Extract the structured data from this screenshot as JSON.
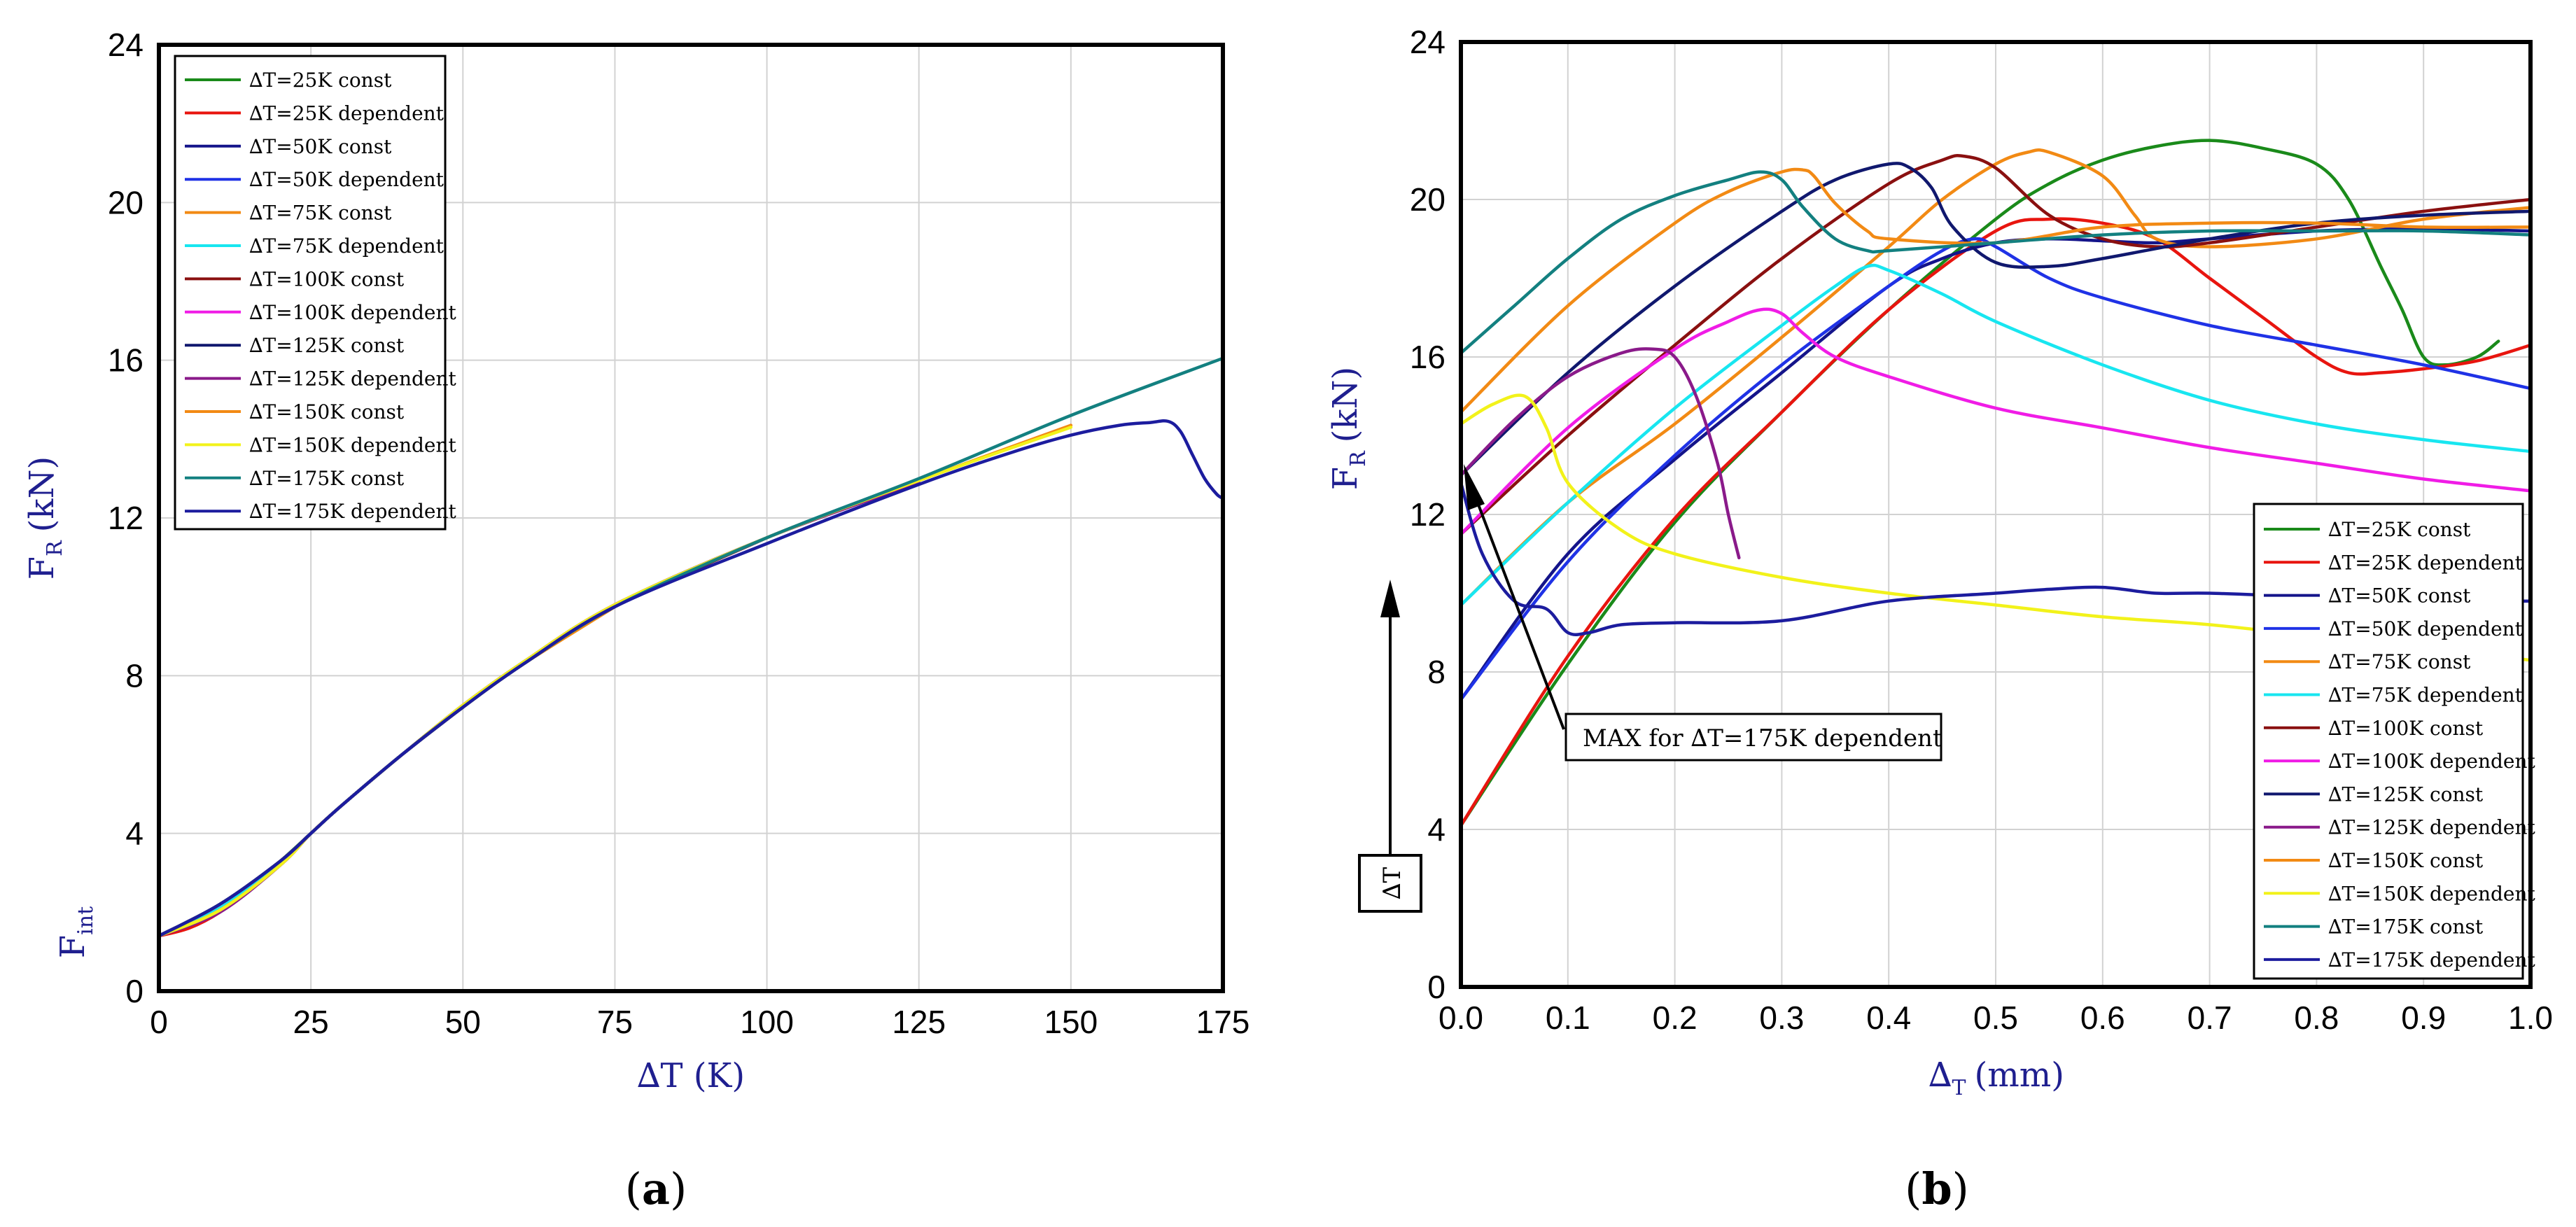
{
  "colors": {
    "axis_label": "#1f1f8f",
    "series": [
      "#1a8a1a",
      "#e8150f",
      "#14148a",
      "#1f32e6",
      "#f28a14",
      "#18e6f0",
      "#8a1010",
      "#f01ce6",
      "#10186e",
      "#8a1a8a",
      "#f28a14",
      "#f2f21a",
      "#138080",
      "#1c1c9e"
    ]
  },
  "legend_labels": [
    "∆T=25K const",
    "∆T=25K dependent",
    "∆T=50K const",
    "∆T=50K dependent",
    "∆T=75K const",
    "∆T=75K dependent",
    "∆T=100K const",
    "∆T=100K dependent",
    "∆T=125K const",
    "∆T=125K dependent",
    "∆T=150K const",
    "∆T=150K dependent",
    "∆T=175K const",
    "∆T=175K dependent"
  ],
  "chart_data": [
    {
      "type": "line",
      "caption": "(a)",
      "caption_letter": "a",
      "xlabel": "∆T (K)",
      "ylabel_main": "F",
      "ylabel_sub": "R",
      "ylabel_unit": "(kN)",
      "fint_main": "F",
      "fint_sub": "int",
      "fint_value": 1.4,
      "xlim": [
        0,
        175
      ],
      "ylim": [
        0,
        24
      ],
      "xticks": [
        0,
        25,
        50,
        75,
        100,
        125,
        150,
        175
      ],
      "yticks": [
        0,
        4,
        8,
        12,
        16,
        20,
        24
      ],
      "grid": true,
      "legend_position": "top-left",
      "series": [
        {
          "name": "∆T=25K const",
          "x": [
            0,
            5,
            10,
            15,
            20,
            25
          ],
          "y": [
            1.4,
            1.75,
            2.2,
            2.7,
            3.3,
            4.0
          ]
        },
        {
          "name": "∆T=25K dependent",
          "x": [
            0,
            5,
            10,
            15,
            20,
            25
          ],
          "y": [
            1.4,
            1.6,
            2.0,
            2.6,
            3.25,
            4.0
          ]
        },
        {
          "name": "∆T=50K const",
          "x": [
            0,
            10,
            20,
            25,
            30,
            40,
            50
          ],
          "y": [
            1.4,
            2.2,
            3.3,
            4.0,
            4.7,
            6.0,
            7.2
          ]
        },
        {
          "name": "∆T=50K dependent",
          "x": [
            0,
            10,
            20,
            25,
            30,
            40,
            50
          ],
          "y": [
            1.4,
            2.05,
            3.2,
            4.0,
            4.7,
            6.0,
            7.25
          ]
        },
        {
          "name": "∆T=75K const",
          "x": [
            0,
            10,
            20,
            25,
            30,
            40,
            50,
            60,
            75
          ],
          "y": [
            1.4,
            2.2,
            3.3,
            4.0,
            4.7,
            6.0,
            7.2,
            8.3,
            9.75
          ]
        },
        {
          "name": "∆T=75K dependent",
          "x": [
            0,
            10,
            20,
            25,
            30,
            40,
            50,
            60,
            75
          ],
          "y": [
            1.4,
            2.1,
            3.25,
            4.0,
            4.7,
            6.0,
            7.25,
            8.35,
            9.8
          ]
        },
        {
          "name": "∆T=100K const",
          "x": [
            0,
            10,
            20,
            25,
            30,
            40,
            50,
            60,
            75,
            100
          ],
          "y": [
            1.4,
            2.2,
            3.3,
            4.0,
            4.7,
            6.0,
            7.2,
            8.3,
            9.75,
            11.5
          ]
        },
        {
          "name": "∆T=100K dependent",
          "x": [
            0,
            10,
            20,
            25,
            30,
            40,
            50,
            60,
            75,
            100
          ],
          "y": [
            1.4,
            2.05,
            3.2,
            4.0,
            4.7,
            6.0,
            7.25,
            8.35,
            9.8,
            11.5
          ]
        },
        {
          "name": "∆T=125K const",
          "x": [
            0,
            10,
            20,
            25,
            30,
            40,
            50,
            60,
            75,
            100,
            125
          ],
          "y": [
            1.4,
            2.2,
            3.3,
            4.0,
            4.7,
            6.0,
            7.2,
            8.3,
            9.75,
            11.5,
            12.95
          ]
        },
        {
          "name": "∆T=125K dependent",
          "x": [
            0,
            10,
            20,
            25,
            30,
            40,
            50,
            60,
            75,
            100,
            125
          ],
          "y": [
            1.4,
            2.0,
            3.2,
            4.0,
            4.7,
            6.0,
            7.25,
            8.35,
            9.8,
            11.5,
            12.9
          ]
        },
        {
          "name": "∆T=150K const",
          "x": [
            0,
            10,
            20,
            25,
            30,
            40,
            50,
            60,
            75,
            100,
            125,
            150
          ],
          "y": [
            1.4,
            2.2,
            3.3,
            4.0,
            4.7,
            6.0,
            7.2,
            8.3,
            9.75,
            11.5,
            12.95,
            14.35
          ]
        },
        {
          "name": "∆T=150K dependent",
          "x": [
            0,
            10,
            20,
            25,
            30,
            40,
            50,
            60,
            75,
            100,
            125,
            150
          ],
          "y": [
            1.4,
            2.05,
            3.2,
            4.0,
            4.7,
            6.0,
            7.25,
            8.35,
            9.8,
            11.5,
            12.95,
            14.3
          ]
        },
        {
          "name": "∆T=175K const",
          "x": [
            0,
            10,
            20,
            25,
            30,
            40,
            50,
            60,
            75,
            100,
            125,
            150,
            175
          ],
          "y": [
            1.4,
            2.2,
            3.3,
            4.0,
            4.7,
            6.0,
            7.2,
            8.3,
            9.75,
            11.5,
            13.0,
            14.6,
            16.05
          ]
        },
        {
          "name": "∆T=175K dependent",
          "x": [
            0,
            10,
            20,
            25,
            30,
            40,
            50,
            60,
            75,
            100,
            125,
            140,
            150,
            158,
            163,
            166,
            168,
            170,
            172,
            174,
            175
          ],
          "y": [
            1.4,
            2.2,
            3.3,
            4.0,
            4.7,
            6.0,
            7.2,
            8.3,
            9.75,
            11.35,
            12.85,
            13.65,
            14.1,
            14.35,
            14.42,
            14.45,
            14.2,
            13.6,
            13.0,
            12.6,
            12.5
          ]
        }
      ]
    },
    {
      "type": "line",
      "caption": "(b)",
      "caption_letter": "b",
      "xlabel_main": "∆",
      "xlabel_sub": "T",
      "xlabel_unit": "(mm)",
      "ylabel_main": "F",
      "ylabel_sub": "R",
      "ylabel_unit": "(kN)",
      "xlim": [
        0.0,
        1.0
      ],
      "ylim": [
        0,
        24
      ],
      "xticks": [
        0.0,
        0.1,
        0.2,
        0.3,
        0.4,
        0.5,
        0.6,
        0.7,
        0.8,
        0.9,
        1.0
      ],
      "yticks": [
        0,
        4,
        8,
        12,
        16,
        20,
        24
      ],
      "grid": true,
      "legend_position": "bottom-right",
      "annotation": "MAX for ∆T=175K dependent",
      "arrow_label": "∆T",
      "series": [
        {
          "name": "∆T=25K const",
          "x": [
            0.0,
            0.1,
            0.2,
            0.3,
            0.4,
            0.5,
            0.55,
            0.6,
            0.65,
            0.7,
            0.75,
            0.8,
            0.83,
            0.86,
            0.88,
            0.9,
            0.92,
            0.95,
            0.97
          ],
          "y": [
            4.1,
            8.2,
            11.8,
            14.6,
            17.2,
            19.5,
            20.4,
            21.0,
            21.35,
            21.5,
            21.3,
            20.9,
            20.0,
            18.3,
            17.2,
            16.0,
            15.8,
            16.0,
            16.4
          ]
        },
        {
          "name": "∆T=25K dependent",
          "x": [
            0.0,
            0.1,
            0.2,
            0.3,
            0.4,
            0.5,
            0.55,
            0.6,
            0.65,
            0.7,
            0.75,
            0.8,
            0.83,
            0.86,
            0.9,
            0.95,
            1.0
          ],
          "y": [
            4.1,
            8.4,
            11.9,
            14.6,
            17.2,
            19.2,
            19.5,
            19.4,
            19.0,
            18.0,
            17.0,
            16.0,
            15.6,
            15.6,
            15.7,
            15.9,
            16.3
          ]
        },
        {
          "name": "∆T=50K const",
          "x": [
            0.0,
            0.1,
            0.2,
            0.3,
            0.4,
            0.45,
            0.5,
            0.55,
            0.6,
            0.65,
            0.7,
            0.8,
            0.9,
            1.0
          ],
          "y": [
            7.3,
            11.0,
            13.4,
            15.6,
            17.8,
            18.5,
            18.9,
            19.0,
            18.95,
            18.9,
            19.0,
            19.2,
            19.25,
            19.2
          ]
        },
        {
          "name": "∆T=50K dependent",
          "x": [
            0.0,
            0.1,
            0.2,
            0.3,
            0.4,
            0.45,
            0.48,
            0.5,
            0.55,
            0.6,
            0.7,
            0.8,
            0.9,
            1.0
          ],
          "y": [
            7.3,
            10.8,
            13.5,
            15.8,
            17.8,
            18.7,
            19.0,
            18.8,
            18.0,
            17.5,
            16.8,
            16.3,
            15.8,
            15.2
          ]
        },
        {
          "name": "∆T=75K const",
          "x": [
            0.0,
            0.1,
            0.2,
            0.3,
            0.4,
            0.45,
            0.5,
            0.53,
            0.55,
            0.6,
            0.63,
            0.65,
            0.7,
            0.8,
            0.9,
            1.0
          ],
          "y": [
            9.7,
            12.3,
            14.3,
            16.5,
            18.8,
            20.0,
            20.9,
            21.2,
            21.2,
            20.6,
            19.6,
            19.0,
            18.8,
            19.0,
            19.5,
            19.8
          ]
        },
        {
          "name": "∆T=75K dependent",
          "x": [
            0.0,
            0.1,
            0.2,
            0.3,
            0.35,
            0.38,
            0.4,
            0.45,
            0.5,
            0.6,
            0.7,
            0.8,
            0.9,
            1.0
          ],
          "y": [
            9.7,
            12.3,
            14.7,
            16.8,
            17.8,
            18.3,
            18.2,
            17.6,
            16.9,
            15.8,
            14.9,
            14.3,
            13.9,
            13.6
          ]
        },
        {
          "name": "∆T=100K const",
          "x": [
            0.0,
            0.1,
            0.2,
            0.3,
            0.4,
            0.45,
            0.47,
            0.5,
            0.55,
            0.6,
            0.65,
            0.7,
            0.8,
            0.9,
            1.0
          ],
          "y": [
            11.5,
            14.0,
            16.3,
            18.5,
            20.4,
            21.0,
            21.1,
            20.8,
            19.6,
            19.0,
            18.8,
            18.9,
            19.3,
            19.7,
            20.0
          ]
        },
        {
          "name": "∆T=100K dependent",
          "x": [
            0.0,
            0.1,
            0.2,
            0.25,
            0.28,
            0.3,
            0.32,
            0.35,
            0.4,
            0.5,
            0.6,
            0.7,
            0.8,
            0.9,
            1.0
          ],
          "y": [
            11.5,
            14.2,
            16.2,
            16.9,
            17.2,
            17.1,
            16.6,
            16.0,
            15.5,
            14.7,
            14.2,
            13.7,
            13.3,
            12.9,
            12.6
          ]
        },
        {
          "name": "∆T=125K const",
          "x": [
            0.0,
            0.1,
            0.2,
            0.3,
            0.35,
            0.4,
            0.42,
            0.44,
            0.46,
            0.5,
            0.55,
            0.6,
            0.7,
            0.8,
            0.9,
            1.0
          ],
          "y": [
            13.0,
            15.6,
            17.8,
            19.7,
            20.5,
            20.9,
            20.8,
            20.3,
            19.3,
            18.4,
            18.3,
            18.5,
            19.0,
            19.4,
            19.6,
            19.7
          ]
        },
        {
          "name": "∆T=125K dependent",
          "x": [
            0.0,
            0.05,
            0.1,
            0.15,
            0.18,
            0.2,
            0.22,
            0.24,
            0.25,
            0.26
          ],
          "y": [
            13.0,
            14.4,
            15.5,
            16.1,
            16.2,
            16.0,
            15.0,
            13.3,
            12.0,
            10.9
          ]
        },
        {
          "name": "∆T=150K const",
          "x": [
            0.0,
            0.1,
            0.2,
            0.25,
            0.3,
            0.32,
            0.33,
            0.35,
            0.38,
            0.4,
            0.5,
            0.6,
            0.7,
            0.8,
            0.9,
            1.0
          ],
          "y": [
            14.6,
            17.3,
            19.4,
            20.2,
            20.7,
            20.75,
            20.6,
            19.9,
            19.2,
            19.0,
            18.9,
            19.3,
            19.4,
            19.4,
            19.3,
            19.3
          ]
        },
        {
          "name": "∆T=150K dependent",
          "x": [
            0.0,
            0.03,
            0.06,
            0.08,
            0.1,
            0.15,
            0.2,
            0.3,
            0.4,
            0.5,
            0.6,
            0.7,
            0.8,
            0.9,
            1.0
          ],
          "y": [
            14.3,
            14.8,
            15.0,
            14.2,
            12.8,
            11.6,
            11.0,
            10.4,
            10.0,
            9.7,
            9.4,
            9.2,
            8.9,
            8.6,
            8.3
          ]
        },
        {
          "name": "∆T=175K const",
          "x": [
            0.0,
            0.05,
            0.1,
            0.15,
            0.2,
            0.25,
            0.28,
            0.3,
            0.32,
            0.35,
            0.38,
            0.4,
            0.5,
            0.6,
            0.7,
            0.8,
            0.9,
            1.0
          ],
          "y": [
            16.1,
            17.3,
            18.5,
            19.5,
            20.1,
            20.5,
            20.7,
            20.5,
            19.8,
            19.0,
            18.7,
            18.7,
            18.9,
            19.1,
            19.2,
            19.2,
            19.2,
            19.1
          ]
        },
        {
          "name": "∆T=175K dependent",
          "x": [
            0.0,
            0.02,
            0.05,
            0.08,
            0.1,
            0.12,
            0.15,
            0.2,
            0.3,
            0.4,
            0.5,
            0.55,
            0.6,
            0.65,
            0.7,
            0.8,
            0.9,
            1.0
          ],
          "y": [
            12.8,
            11.0,
            9.8,
            9.6,
            9.0,
            9.0,
            9.2,
            9.25,
            9.3,
            9.8,
            10.0,
            10.1,
            10.15,
            10.0,
            10.0,
            9.9,
            9.8,
            9.8
          ]
        }
      ]
    }
  ]
}
